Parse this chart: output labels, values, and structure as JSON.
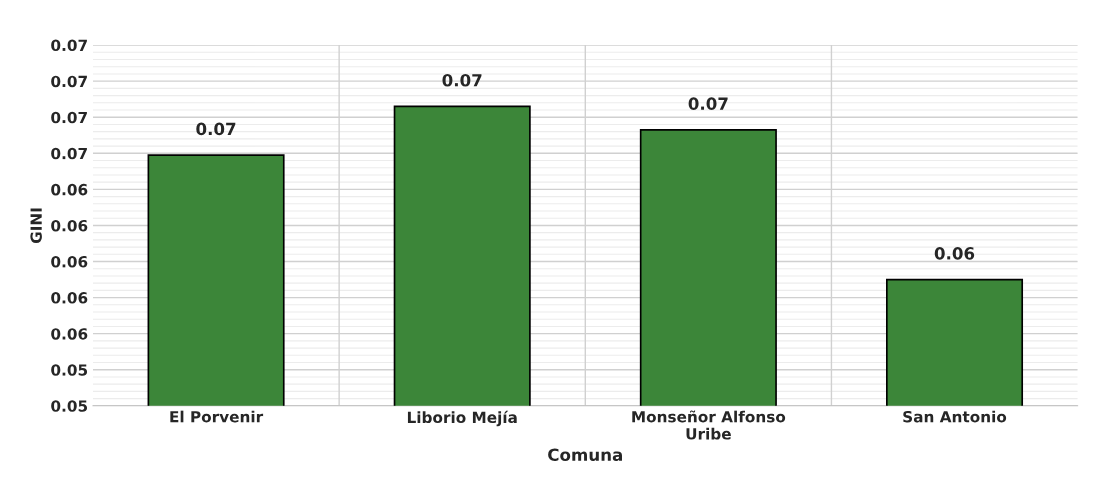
{
  "chart_data": {
    "type": "bar",
    "xlabel": "Comuna",
    "ylabel": "GINI",
    "categories": [
      "El Porvenir",
      "Liborio Mejía",
      "Monseñor Alfonso\nUribe",
      "San Antonio"
    ],
    "values": [
      0.0659,
      0.0686,
      0.0673,
      0.059
    ],
    "value_labels": [
      "0.07",
      "0.07",
      "0.07",
      "0.06"
    ],
    "color": "#3c8639",
    "ylim": [
      0.052,
      0.072
    ],
    "yticks": [
      {
        "value": 0.052,
        "label": "0.05"
      },
      {
        "value": 0.054,
        "label": "0.05"
      },
      {
        "value": 0.056,
        "label": "0.06"
      },
      {
        "value": 0.058,
        "label": "0.06"
      },
      {
        "value": 0.06,
        "label": "0.06"
      },
      {
        "value": 0.062,
        "label": "0.06"
      },
      {
        "value": 0.064,
        "label": "0.06"
      },
      {
        "value": 0.066,
        "label": "0.07"
      },
      {
        "value": 0.068,
        "label": "0.07"
      },
      {
        "value": 0.07,
        "label": "0.07"
      },
      {
        "value": 0.072,
        "label": "0.07"
      }
    ],
    "grid": true
  }
}
